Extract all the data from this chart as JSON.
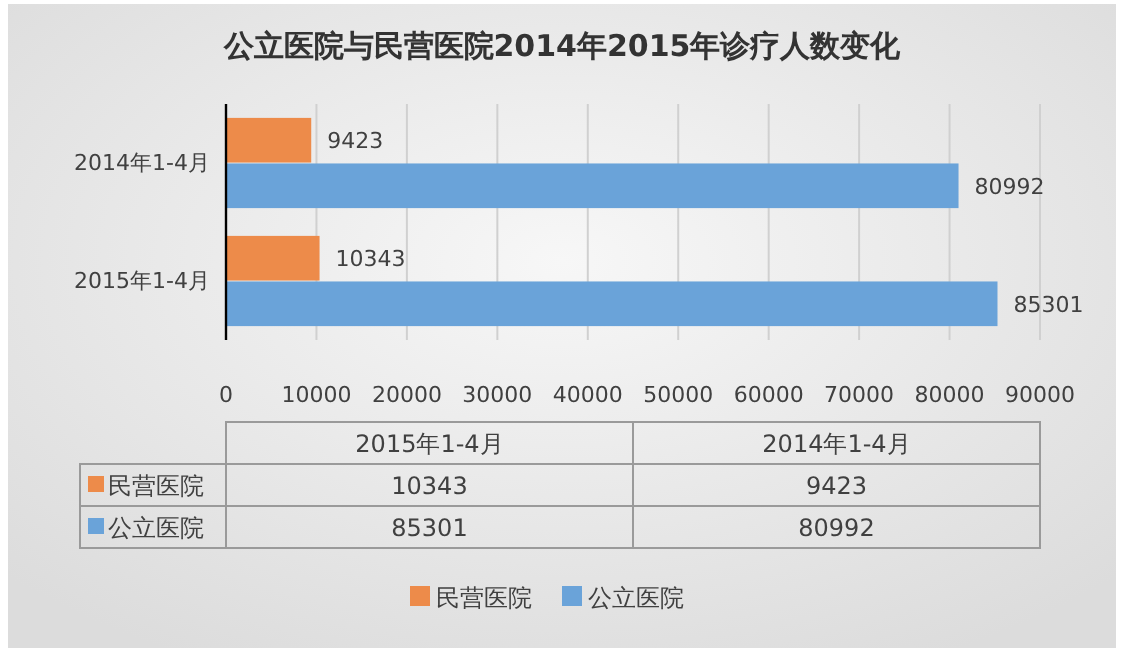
{
  "chart_data": [
    {
      "type": "bar",
      "orientation": "horizontal",
      "title": "公立医院与民营医院2014年2015年诊疗人数变化",
      "categories": [
        "2014年1-4月",
        "2015年1-4月"
      ],
      "series": [
        {
          "name": "民营医院",
          "color": "#ed8b4a",
          "values": [
            9423,
            10343
          ]
        },
        {
          "name": "公立医院",
          "color": "#6aa3d9",
          "values": [
            80992,
            85301
          ]
        }
      ],
      "xlim": [
        0,
        90000
      ],
      "xticks": [
        0,
        10000,
        20000,
        30000,
        40000,
        50000,
        60000,
        70000,
        80000,
        90000
      ],
      "grid": "x",
      "legend": "bottom",
      "data_labels": true
    },
    {
      "type": "other",
      "categories": [
        "2015年1-4月",
        "2014年1-4月"
      ],
      "series": [
        {
          "name": "民营医院",
          "color": "#ed8b4a",
          "values": [
            10343,
            9423
          ]
        },
        {
          "name": "公立医院",
          "color": "#6aa3d9",
          "values": [
            85301,
            80992
          ]
        }
      ],
      "data_labels": true
    }
  ]
}
